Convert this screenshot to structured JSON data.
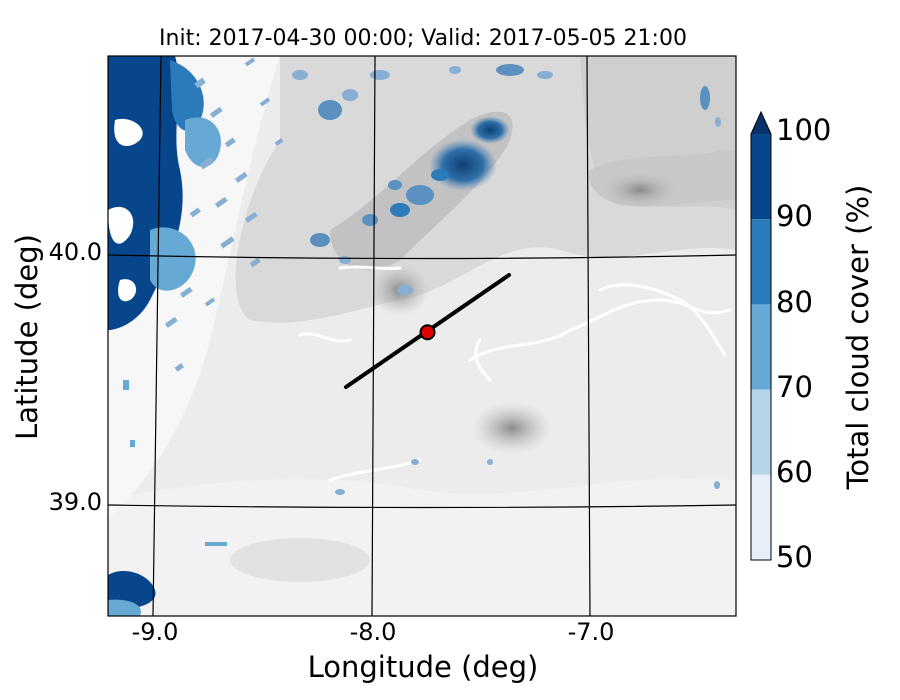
{
  "title": "Init: 2017-04-30 00:00; Valid: 2017-05-05 21:00",
  "map": {
    "xlabel": "Longitude (deg)",
    "ylabel": "Latitude (deg)",
    "xticks": [
      "-9.0",
      "-8.0",
      "-7.0"
    ],
    "yticks": [
      "40.0",
      "39.0"
    ],
    "transect_color": "#000000",
    "point_color": "#e00000"
  },
  "colorbar": {
    "label": "Total cloud cover (%)",
    "ticks": [
      "100",
      "90",
      "80",
      "70",
      "60",
      "50"
    ],
    "colors": [
      "#08468b",
      "#2b7bba",
      "#66a9d4",
      "#b5d3e9",
      "#e6eff8"
    ],
    "extend": "max"
  },
  "chart_data": {
    "type": "map",
    "title": "Init: 2017-04-30 00:00; Valid: 2017-05-05 21:00",
    "xlabel": "Longitude (deg)",
    "ylabel": "Latitude (deg)",
    "xlim": [
      -9.2,
      -6.35
    ],
    "ylim": [
      38.55,
      40.8
    ],
    "xticks": [
      -9.0,
      -8.0,
      -7.0
    ],
    "yticks": [
      39.0,
      40.0
    ],
    "variable": "Total cloud cover (%)",
    "levels": [
      50,
      60,
      70,
      80,
      90,
      100
    ],
    "transect": {
      "start": [
        -8.12,
        39.47
      ],
      "end": [
        -7.38,
        39.92
      ]
    },
    "point": [
      -7.75,
      39.69
    ]
  }
}
